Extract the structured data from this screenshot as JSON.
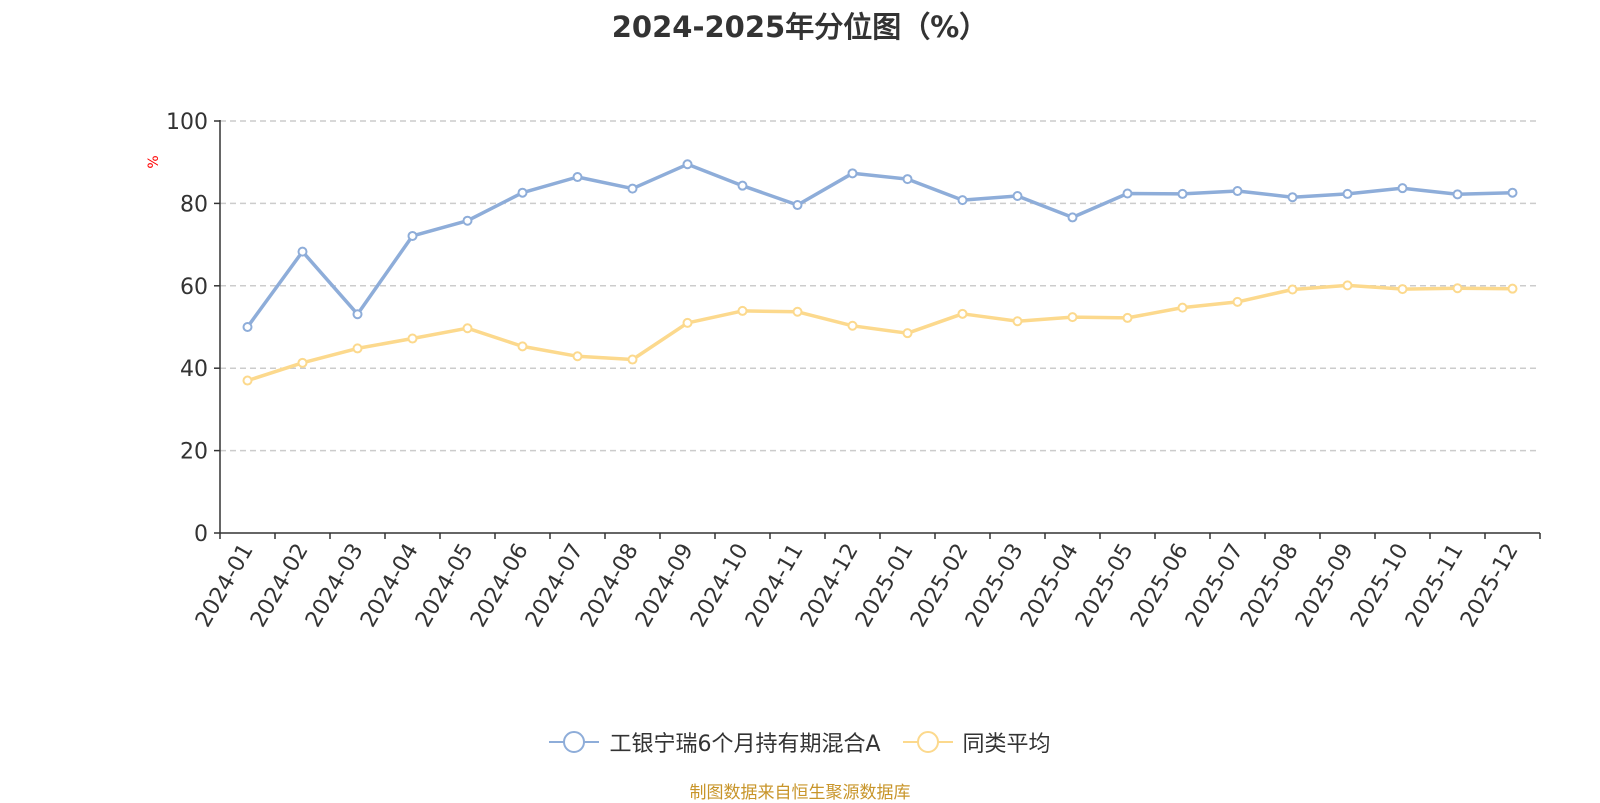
{
  "chart_data": {
    "type": "line",
    "title": "2024-2025年分位图（%）",
    "ylabel": "%",
    "xlabel": "",
    "ylim": [
      0,
      100
    ],
    "yticks": [
      0,
      20,
      40,
      60,
      80,
      100
    ],
    "grid": true,
    "legend_position": "bottom-center",
    "categories": [
      "2024-01",
      "2024-02",
      "2024-03",
      "2024-04",
      "2024-05",
      "2024-06",
      "2024-07",
      "2024-08",
      "2024-09",
      "2024-10",
      "2024-11",
      "2024-12",
      "2025-01",
      "2025-02",
      "2025-03",
      "2025-04",
      "2025-05",
      "2025-06",
      "2025-07",
      "2025-08",
      "2025-09",
      "2025-10",
      "2025-11",
      "2025-12"
    ],
    "series": [
      {
        "name": "工银宁瑞6个月持有期混合A",
        "color": "#8eadd9",
        "values": [
          50.0,
          68.3,
          53.1,
          72.1,
          75.8,
          82.6,
          86.4,
          83.6,
          89.5,
          84.3,
          79.6,
          87.3,
          85.9,
          80.8,
          81.8,
          76.6,
          82.4,
          82.3,
          83.0,
          81.5,
          82.3,
          83.7,
          82.2,
          82.6
        ]
      },
      {
        "name": "同类平均",
        "color": "#fcd98d",
        "values": [
          37.0,
          41.3,
          44.8,
          47.2,
          49.7,
          45.3,
          42.9,
          42.1,
          51.0,
          53.9,
          53.7,
          50.3,
          48.5,
          53.2,
          51.4,
          52.4,
          52.2,
          54.7,
          56.1,
          59.1,
          60.1,
          59.2,
          59.4,
          59.3
        ]
      }
    ],
    "axis_color": "#333333",
    "grid_color": "#cccccc",
    "ylabel_color": "#ff0000"
  },
  "source_note": "制图数据来自恒生聚源数据库",
  "source_note_color": "#c8952a"
}
